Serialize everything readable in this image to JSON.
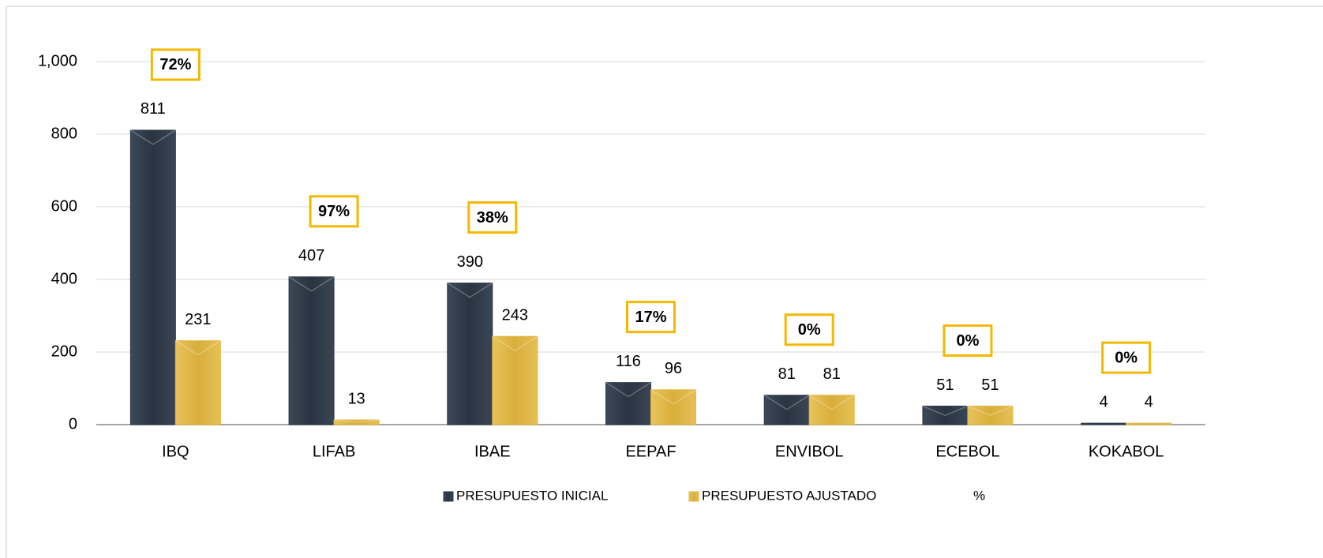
{
  "chart_data": {
    "type": "bar",
    "categories": [
      "IBQ",
      "LIFAB",
      "IBAE",
      "EEPAF",
      "ENVIBOL",
      "ECEBOL",
      "KOKABOL"
    ],
    "series": [
      {
        "name": "PRESUPUESTO INICIAL",
        "color": "#2e3a48",
        "values": [
          811,
          407,
          390,
          116,
          81,
          51,
          4
        ]
      },
      {
        "name": "PRESUPUESTO AJUSTADO",
        "color": "#e0b645",
        "values": [
          231,
          13,
          243,
          96,
          81,
          51,
          4
        ]
      },
      {
        "name": "%",
        "color": "#f5b800",
        "values": [
          72,
          97,
          38,
          17,
          0,
          0,
          0
        ],
        "value_labels": [
          "72%",
          "97%",
          "38%",
          "17%",
          "0%",
          "0%",
          "0%"
        ]
      }
    ],
    "ylim": [
      0,
      1000
    ],
    "yticks": [
      0,
      200,
      400,
      600,
      800,
      {
        "value": 1000,
        "label": "1,000"
      }
    ],
    "grid": true,
    "legend": "bottom"
  }
}
